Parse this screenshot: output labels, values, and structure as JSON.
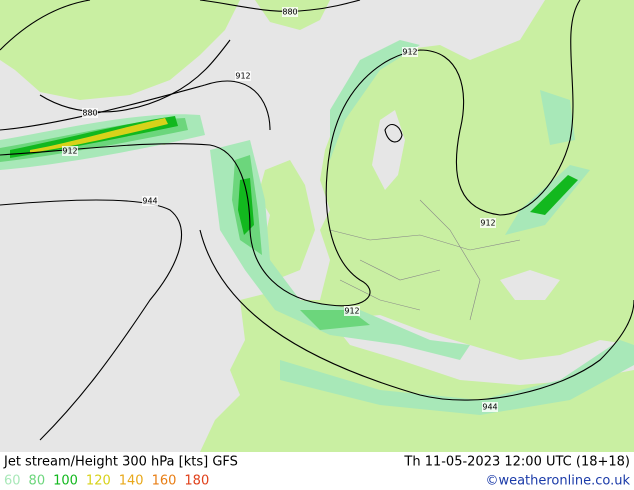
{
  "header": {
    "title": "Jet stream/Height 300 hPa [kts] GFS",
    "datetime": "Th 11-05-2023 12:00 UTC (18+18)",
    "credit": "©weatheronline.co.uk"
  },
  "legend": {
    "values": [
      60,
      80,
      100,
      120,
      140,
      160,
      180
    ],
    "colors": [
      "#a8e8b8",
      "#6cd67c",
      "#12b81e",
      "#d8d21a",
      "#e8a81a",
      "#e87e14",
      "#e0401a"
    ]
  },
  "contour_labels": [
    "880",
    "880",
    "912",
    "912",
    "912",
    "944",
    "912",
    "912",
    "944"
  ]
}
